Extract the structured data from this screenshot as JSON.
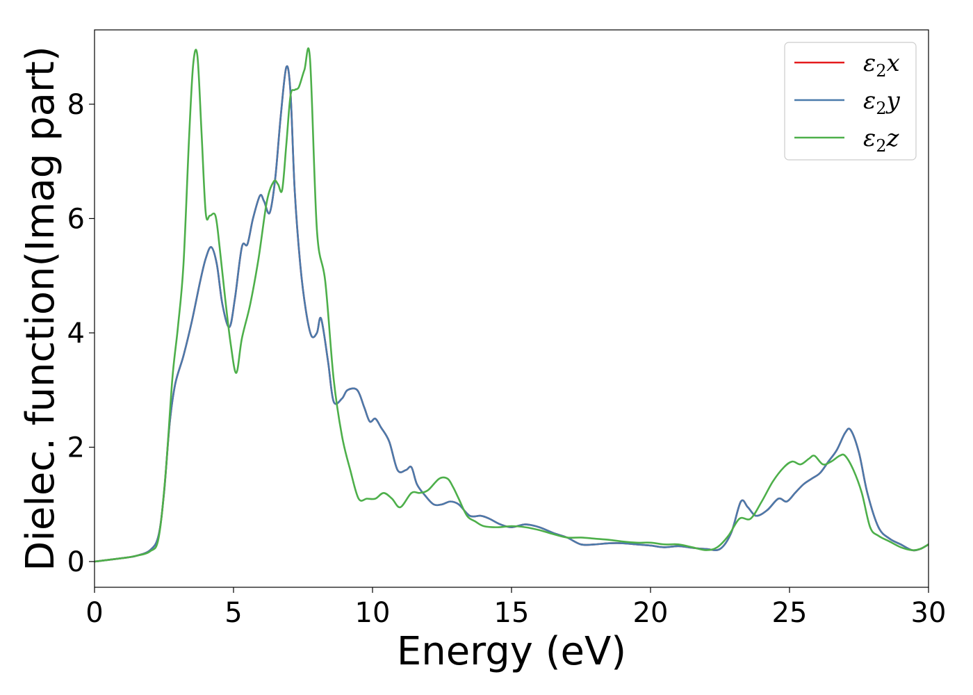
{
  "chart_data": {
    "type": "line",
    "title": "",
    "xlabel": "Energy (eV)",
    "ylabel": "Dielec. function(Imag part)",
    "xlim": [
      0,
      30
    ],
    "ylim": [
      -0.45,
      9.3
    ],
    "xticks": [
      0,
      5,
      10,
      15,
      20,
      25,
      30
    ],
    "yticks": [
      0,
      2,
      4,
      6,
      8
    ],
    "grid": false,
    "legend_position": "top-right",
    "series": [
      {
        "name": "ε2x",
        "legend_main": "ε",
        "legend_sub": "2",
        "legend_suffix": "x",
        "color": "#e41a1c",
        "x": [
          0,
          1,
          1.5,
          2,
          2.3,
          2.5,
          2.7,
          2.9,
          3.2,
          3.5,
          3.8,
          4.0,
          4.2,
          4.4,
          4.6,
          4.85,
          5.05,
          5.3,
          5.5,
          5.7,
          5.95,
          6.1,
          6.3,
          6.5,
          6.7,
          6.9,
          7.05,
          7.2,
          7.4,
          7.6,
          7.8,
          8.0,
          8.15,
          8.4,
          8.6,
          8.9,
          9.1,
          9.45,
          9.7,
          9.9,
          10.1,
          10.3,
          10.6,
          10.9,
          11.2,
          11.4,
          11.6,
          11.9,
          12.2,
          12.5,
          12.8,
          13.1,
          13.5,
          13.9,
          14.2,
          14.6,
          15.0,
          15.5,
          16.0,
          16.5,
          17.0,
          17.5,
          18.0,
          18.5,
          19.0,
          19.5,
          20.0,
          20.5,
          21.0,
          21.5,
          22.0,
          22.5,
          22.9,
          23.25,
          23.5,
          23.8,
          24.2,
          24.6,
          24.9,
          25.2,
          25.5,
          25.8,
          26.1,
          26.4,
          26.7,
          27.0,
          27.2,
          27.5,
          27.8,
          28.2,
          28.6,
          29.0,
          29.4,
          29.7,
          30.0
        ],
        "values": [
          0,
          0.06,
          0.1,
          0.2,
          0.45,
          1.2,
          2.4,
          3.1,
          3.6,
          4.2,
          4.9,
          5.3,
          5.5,
          5.2,
          4.5,
          4.1,
          4.6,
          5.5,
          5.55,
          6.0,
          6.4,
          6.3,
          6.1,
          6.7,
          7.8,
          8.65,
          8.2,
          6.5,
          5.2,
          4.4,
          3.95,
          4.0,
          4.25,
          3.5,
          2.8,
          2.85,
          3.0,
          3.0,
          2.7,
          2.45,
          2.5,
          2.35,
          2.1,
          1.6,
          1.6,
          1.65,
          1.35,
          1.15,
          1.0,
          1.0,
          1.05,
          1.0,
          0.8,
          0.8,
          0.75,
          0.65,
          0.6,
          0.65,
          0.6,
          0.5,
          0.42,
          0.3,
          0.3,
          0.32,
          0.32,
          0.3,
          0.28,
          0.25,
          0.27,
          0.24,
          0.22,
          0.22,
          0.5,
          1.05,
          0.95,
          0.8,
          0.9,
          1.1,
          1.05,
          1.2,
          1.35,
          1.45,
          1.55,
          1.75,
          1.95,
          2.25,
          2.3,
          1.9,
          1.2,
          0.6,
          0.4,
          0.3,
          0.2,
          0.22,
          0.3
        ]
      },
      {
        "name": "ε2y",
        "legend_main": "ε",
        "legend_sub": "2",
        "legend_suffix": "y",
        "color": "#4a7aab",
        "x": [
          0,
          1,
          1.5,
          2,
          2.3,
          2.5,
          2.7,
          2.9,
          3.2,
          3.5,
          3.8,
          4.0,
          4.2,
          4.4,
          4.6,
          4.85,
          5.05,
          5.3,
          5.5,
          5.7,
          5.95,
          6.1,
          6.3,
          6.5,
          6.7,
          6.9,
          7.05,
          7.2,
          7.4,
          7.6,
          7.8,
          8.0,
          8.15,
          8.4,
          8.6,
          8.9,
          9.1,
          9.45,
          9.7,
          9.9,
          10.1,
          10.3,
          10.6,
          10.9,
          11.2,
          11.4,
          11.6,
          11.9,
          12.2,
          12.5,
          12.8,
          13.1,
          13.5,
          13.9,
          14.2,
          14.6,
          15.0,
          15.5,
          16.0,
          16.5,
          17.0,
          17.5,
          18.0,
          18.5,
          19.0,
          19.5,
          20.0,
          20.5,
          21.0,
          21.5,
          22.0,
          22.5,
          22.9,
          23.25,
          23.5,
          23.8,
          24.2,
          24.6,
          24.9,
          25.2,
          25.5,
          25.8,
          26.1,
          26.4,
          26.7,
          27.0,
          27.2,
          27.5,
          27.8,
          28.2,
          28.6,
          29.0,
          29.4,
          29.7,
          30.0
        ],
        "values": [
          0,
          0.06,
          0.1,
          0.2,
          0.45,
          1.2,
          2.4,
          3.1,
          3.6,
          4.2,
          4.9,
          5.3,
          5.5,
          5.2,
          4.5,
          4.1,
          4.6,
          5.5,
          5.55,
          6.0,
          6.4,
          6.3,
          6.1,
          6.7,
          7.8,
          8.65,
          8.2,
          6.5,
          5.2,
          4.4,
          3.95,
          4.0,
          4.25,
          3.5,
          2.8,
          2.85,
          3.0,
          3.0,
          2.7,
          2.45,
          2.5,
          2.35,
          2.1,
          1.6,
          1.6,
          1.65,
          1.35,
          1.15,
          1.0,
          1.0,
          1.05,
          1.0,
          0.8,
          0.8,
          0.75,
          0.65,
          0.6,
          0.65,
          0.6,
          0.5,
          0.42,
          0.3,
          0.3,
          0.32,
          0.32,
          0.3,
          0.28,
          0.25,
          0.27,
          0.24,
          0.22,
          0.22,
          0.5,
          1.05,
          0.95,
          0.8,
          0.9,
          1.1,
          1.05,
          1.2,
          1.35,
          1.45,
          1.55,
          1.75,
          1.95,
          2.25,
          2.3,
          1.9,
          1.2,
          0.6,
          0.4,
          0.3,
          0.2,
          0.22,
          0.3
        ]
      },
      {
        "name": "ε2z",
        "legend_main": "ε",
        "legend_sub": "2",
        "legend_suffix": "z",
        "color": "#4daf4a",
        "x": [
          0,
          1,
          1.5,
          2,
          2.3,
          2.55,
          2.8,
          3.0,
          3.2,
          3.4,
          3.55,
          3.7,
          3.85,
          4.0,
          4.15,
          4.35,
          4.5,
          4.7,
          4.9,
          5.1,
          5.3,
          5.6,
          5.9,
          6.2,
          6.45,
          6.6,
          6.75,
          6.9,
          7.05,
          7.2,
          7.35,
          7.55,
          7.75,
          8.0,
          8.3,
          8.6,
          8.9,
          9.2,
          9.5,
          9.8,
          10.1,
          10.4,
          10.7,
          11.0,
          11.4,
          11.7,
          12.0,
          12.4,
          12.7,
          12.9,
          13.1,
          13.4,
          13.7,
          14.0,
          14.5,
          15.0,
          15.5,
          16.0,
          16.5,
          17.0,
          17.5,
          18.0,
          18.5,
          19.0,
          19.5,
          20.0,
          20.5,
          21.0,
          21.5,
          22.0,
          22.4,
          22.8,
          23.2,
          23.6,
          24.0,
          24.4,
          24.8,
          25.1,
          25.4,
          25.7,
          25.9,
          26.2,
          26.5,
          26.8,
          27.0,
          27.3,
          27.6,
          27.9,
          28.2,
          28.6,
          29.0,
          29.4,
          29.7,
          30.0
        ],
        "values": [
          0,
          0.06,
          0.1,
          0.18,
          0.4,
          1.5,
          3.2,
          4.1,
          5.2,
          7.4,
          8.7,
          8.85,
          7.5,
          6.1,
          6.05,
          6.05,
          5.5,
          4.6,
          3.8,
          3.3,
          3.9,
          4.5,
          5.3,
          6.3,
          6.65,
          6.6,
          6.5,
          7.3,
          8.15,
          8.25,
          8.3,
          8.6,
          8.8,
          5.8,
          4.9,
          3.2,
          2.2,
          1.6,
          1.1,
          1.1,
          1.1,
          1.2,
          1.1,
          0.95,
          1.2,
          1.2,
          1.25,
          1.45,
          1.45,
          1.3,
          1.1,
          0.8,
          0.7,
          0.62,
          0.6,
          0.62,
          0.6,
          0.55,
          0.48,
          0.42,
          0.42,
          0.4,
          0.38,
          0.35,
          0.33,
          0.33,
          0.3,
          0.3,
          0.25,
          0.2,
          0.25,
          0.45,
          0.75,
          0.75,
          1.05,
          1.4,
          1.65,
          1.75,
          1.7,
          1.8,
          1.85,
          1.7,
          1.75,
          1.85,
          1.85,
          1.6,
          1.2,
          0.6,
          0.45,
          0.35,
          0.25,
          0.2,
          0.22,
          0.3
        ]
      }
    ]
  }
}
